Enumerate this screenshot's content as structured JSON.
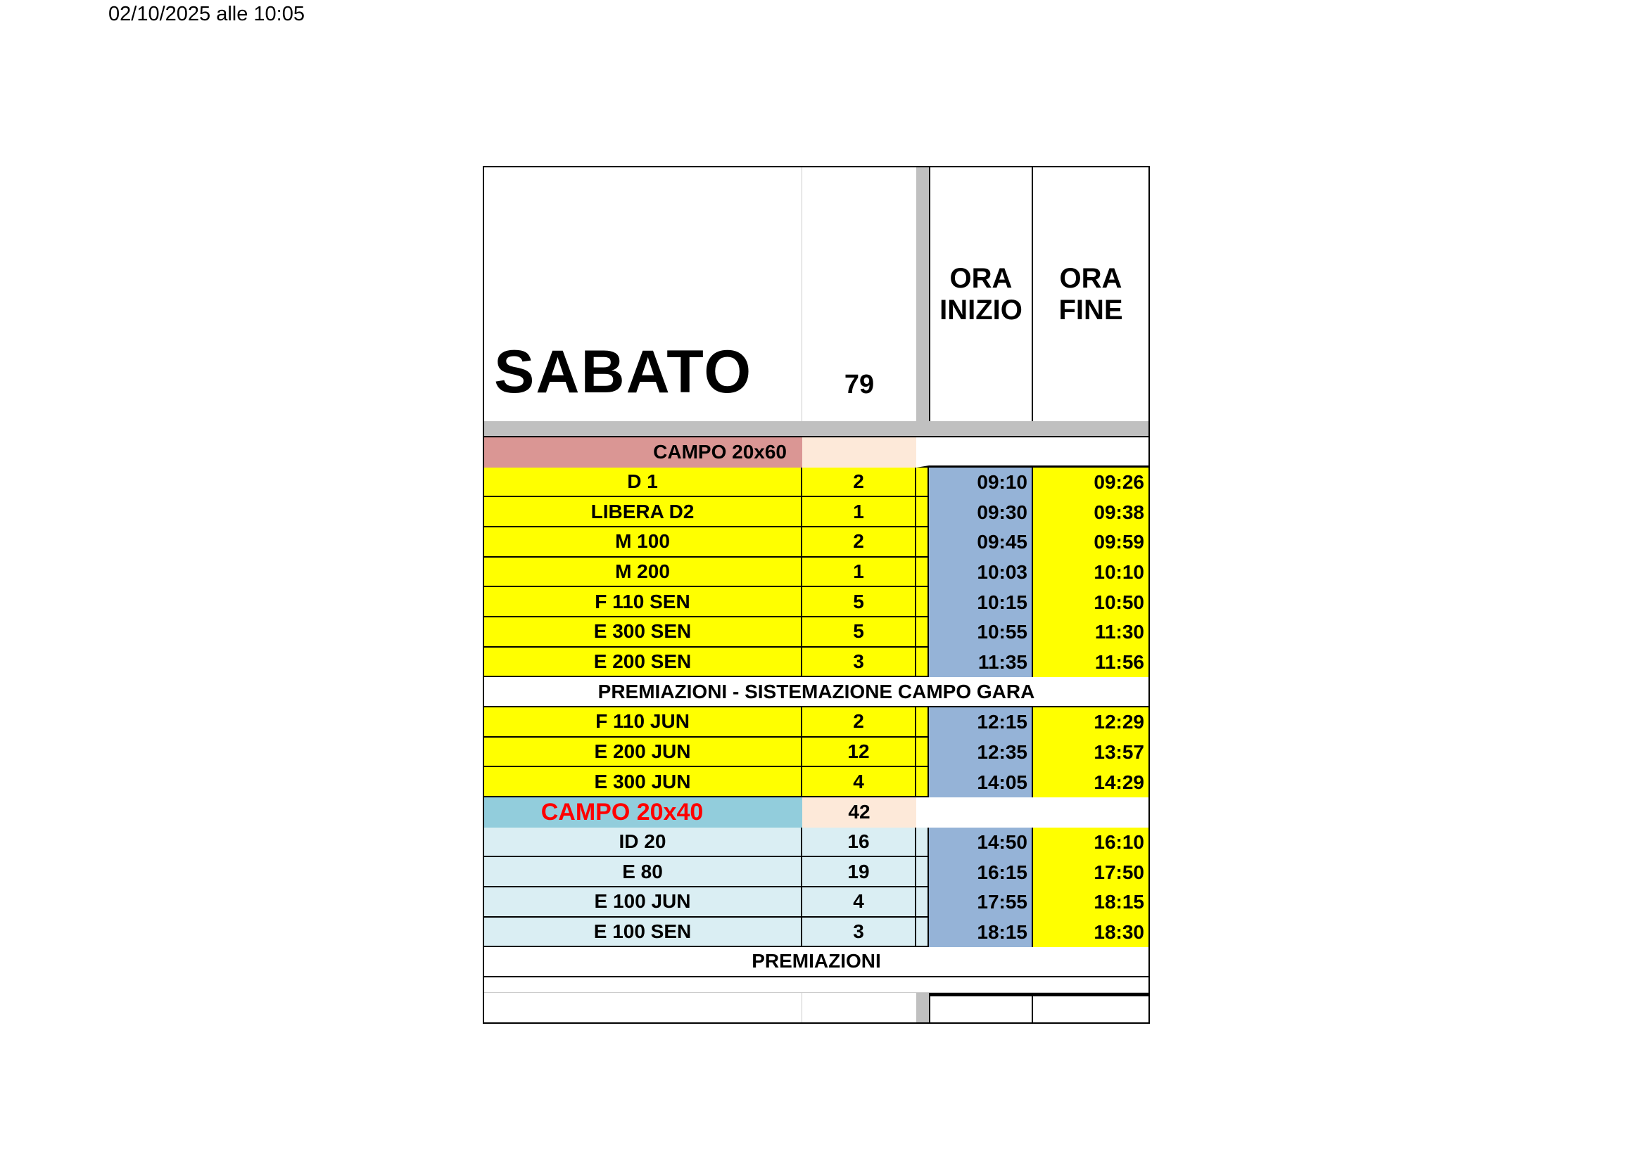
{
  "print_stamp": "02/10/2025 alle 10:05",
  "header": {
    "day": "SABATO",
    "total": "79",
    "start_label_1": "ORA",
    "start_label_2": "INIZIO",
    "end_label_1": "ORA",
    "end_label_2": "FINE"
  },
  "colors": {
    "yellow": "#ffff00",
    "time_blue": "#95b3d7",
    "campo1": "#da9694",
    "campo2": "#92cddc",
    "peach": "#fde9d9",
    "light_blue": "#daeef3",
    "red_text": "#ff0000"
  },
  "campo1": {
    "label": "CAMPO 20x60",
    "count": ""
  },
  "campo1_rows": [
    {
      "event": "D 1",
      "n": "2",
      "start": "09:10",
      "end": "09:26"
    },
    {
      "event": "LIBERA D2",
      "n": "1",
      "start": "09:30",
      "end": "09:38"
    },
    {
      "event": "M 100",
      "n": "2",
      "start": "09:45",
      "end": "09:59"
    },
    {
      "event": "M 200",
      "n": "1",
      "start": "10:03",
      "end": "10:10"
    },
    {
      "event": "F 110 SEN",
      "n": "5",
      "start": "10:15",
      "end": "10:50"
    },
    {
      "event": "E 300 SEN",
      "n": "5",
      "start": "10:55",
      "end": "11:30"
    },
    {
      "event": "E 200 SEN",
      "n": "3",
      "start": "11:35",
      "end": "11:56"
    }
  ],
  "break1": "PREMIAZIONI - SISTEMAZIONE CAMPO GARA",
  "campo1_rows_b": [
    {
      "event": "F 110 JUN",
      "n": "2",
      "start": "12:15",
      "end": "12:29"
    },
    {
      "event": "E 200 JUN",
      "n": "12",
      "start": "12:35",
      "end": "13:57"
    },
    {
      "event": "E 300 JUN",
      "n": "4",
      "start": "14:05",
      "end": "14:29"
    }
  ],
  "campo2": {
    "label": "CAMPO 20x40",
    "count": "42"
  },
  "campo2_rows": [
    {
      "event": "ID 20",
      "n": "16",
      "start": "14:50",
      "end": "16:10"
    },
    {
      "event": "E 80",
      "n": "19",
      "start": "16:15",
      "end": "17:50"
    },
    {
      "event": "E 100 JUN",
      "n": "4",
      "start": "17:55",
      "end": "18:15"
    },
    {
      "event": "E 100 SEN",
      "n": "3",
      "start": "18:15",
      "end": "18:30"
    }
  ],
  "break2": "PREMIAZIONI"
}
